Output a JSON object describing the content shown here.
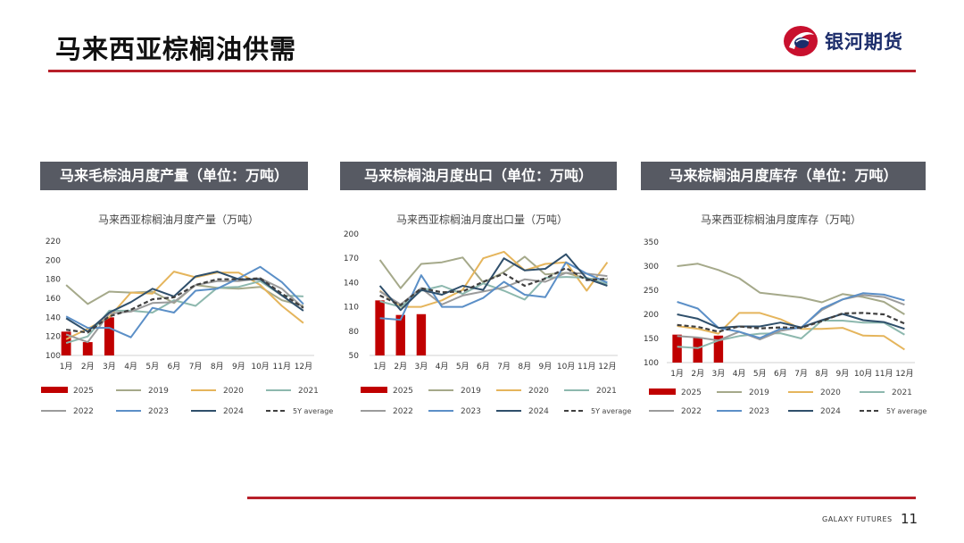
{
  "slide": {
    "title": "马来西亚棕榈油供需",
    "brand": "银河期货",
    "footer": "GALAXY FUTURES",
    "page": "11"
  },
  "colors": {
    "2025": "#c00000",
    "2019": "#a5a98a",
    "2020": "#e5b55c",
    "2021": "#8db8ae",
    "2022": "#9b9b9b",
    "2023": "#5b8fc7",
    "2024": "#2f4f6b",
    "5Y average": "#404040"
  },
  "chart_data": [
    {
      "type": "bar+line",
      "header": "马来毛棕油月度产量（单位：万吨）",
      "title": "马来西亚棕榈油月度产量（万吨）",
      "categories": [
        "1月",
        "2月",
        "3月",
        "4月",
        "5月",
        "6月",
        "7月",
        "8月",
        "9月",
        "10月",
        "11月",
        "12月"
      ],
      "ylim": [
        100,
        220
      ],
      "yticks": [
        100,
        120,
        140,
        160,
        180,
        200,
        220
      ],
      "bars": {
        "name": "2025",
        "values": [
          125,
          114,
          140
        ]
      },
      "series": [
        {
          "name": "2019",
          "values": [
            174,
            154,
            167,
            166,
            167,
            155,
            174,
            171,
            170,
            172,
            158,
            152
          ]
        },
        {
          "name": "2020",
          "values": [
            117,
            128,
            140,
            166,
            165,
            188,
            182,
            187,
            187,
            174,
            152,
            134
          ]
        },
        {
          "name": "2021",
          "values": [
            113,
            120,
            147,
            147,
            145,
            158,
            152,
            171,
            172,
            178,
            163,
            162
          ]
        },
        {
          "name": "2022",
          "values": [
            122,
            114,
            144,
            146,
            155,
            156,
            174,
            178,
            178,
            181,
            170,
            150
          ]
        },
        {
          "name": "2023",
          "values": [
            141,
            129,
            129,
            119,
            150,
            145,
            168,
            170,
            181,
            193,
            177,
            154
          ]
        },
        {
          "name": "2024",
          "values": [
            139,
            125,
            145,
            156,
            170,
            162,
            183,
            188,
            180,
            180,
            163,
            147
          ]
        },
        {
          "name": "5Y average",
          "values": [
            127,
            124,
            141,
            148,
            159,
            161,
            174,
            180,
            180,
            181,
            165,
            150
          ]
        }
      ],
      "legend": [
        "2025",
        "2019",
        "2020",
        "2021",
        "2022",
        "2023",
        "2024",
        "5Y average"
      ]
    },
    {
      "type": "bar+line",
      "header": "马来棕榈油月度出口（单位：万吨）",
      "title": "马来西亚棕榈油月度出口量（万吨）",
      "categories": [
        "1月",
        "2月",
        "3月",
        "4月",
        "5月",
        "6月",
        "7月",
        "8月",
        "9月",
        "10月",
        "11月",
        "12月"
      ],
      "ylim": [
        50,
        200
      ],
      "yticks": [
        50,
        80,
        110,
        140,
        170,
        200
      ],
      "bars": {
        "name": "2025",
        "values": [
          118,
          100,
          101
        ]
      },
      "series": [
        {
          "name": "2019",
          "values": [
            168,
            133,
            163,
            165,
            171,
            140,
            153,
            172,
            150,
            152,
            145,
            144
          ]
        },
        {
          "name": "2020",
          "values": [
            130,
            110,
            110,
            118,
            131,
            170,
            178,
            155,
            163,
            165,
            130,
            165
          ]
        },
        {
          "name": "2021",
          "values": [
            117,
            110,
            130,
            136,
            126,
            139,
            130,
            119,
            146,
            147,
            146,
            138
          ]
        },
        {
          "name": "2022",
          "values": [
            129,
            113,
            133,
            113,
            124,
            129,
            134,
            144,
            141,
            152,
            151,
            148
          ]
        },
        {
          "name": "2023",
          "values": [
            96,
            94,
            149,
            110,
            110,
            121,
            141,
            125,
            122,
            165,
            151,
            140
          ]
        },
        {
          "name": "2024",
          "values": [
            136,
            106,
            131,
            125,
            136,
            131,
            170,
            155,
            157,
            175,
            145,
            136
          ]
        },
        {
          "name": "5Y average",
          "values": [
            124,
            112,
            133,
            128,
            129,
            141,
            151,
            136,
            145,
            158,
            143,
            145
          ]
        }
      ],
      "legend": [
        "2025",
        "2019",
        "2020",
        "2021",
        "2022",
        "2023",
        "2024",
        "5Y average"
      ]
    },
    {
      "type": "bar+line",
      "header": "马来棕榈油月度库存（单位：万吨）",
      "title": "马来西亚棕榈油月度库存（万吨）",
      "categories": [
        "1月",
        "2月",
        "3月",
        "4月",
        "5月",
        "6月",
        "7月",
        "8月",
        "9月",
        "10月",
        "11月",
        "12月"
      ],
      "ylim": [
        100,
        350
      ],
      "yticks": [
        100,
        150,
        200,
        250,
        300,
        350
      ],
      "bars": {
        "name": "2025",
        "values": [
          158,
          152,
          156
        ]
      },
      "series": [
        {
          "name": "2019",
          "values": [
            300,
            305,
            292,
            275,
            245,
            240,
            235,
            225,
            242,
            236,
            226,
            200
          ]
        },
        {
          "name": "2020",
          "values": [
            176,
            170,
            160,
            203,
            203,
            190,
            170,
            170,
            172,
            156,
            155,
            127
          ]
        },
        {
          "name": "2021",
          "values": [
            133,
            130,
            146,
            155,
            160,
            161,
            150,
            187,
            187,
            183,
            183,
            158
          ]
        },
        {
          "name": "2022",
          "values": [
            155,
            152,
            146,
            164,
            148,
            166,
            173,
            209,
            231,
            240,
            236,
            220
          ]
        },
        {
          "name": "2023",
          "values": [
            226,
            212,
            172,
            164,
            151,
            170,
            172,
            212,
            231,
            244,
            241,
            229
          ]
        },
        {
          "name": "2024",
          "values": [
            200,
            191,
            172,
            175,
            175,
            183,
            173,
            188,
            201,
            188,
            184,
            170
          ]
        },
        {
          "name": "5Y average",
          "values": [
            178,
            174,
            164,
            175,
            171,
            173,
            172,
            186,
            202,
            203,
            200,
            181
          ]
        }
      ],
      "legend": [
        "2025",
        "2019",
        "2020",
        "2021",
        "2022",
        "2023",
        "2024",
        "5Y average"
      ]
    }
  ]
}
